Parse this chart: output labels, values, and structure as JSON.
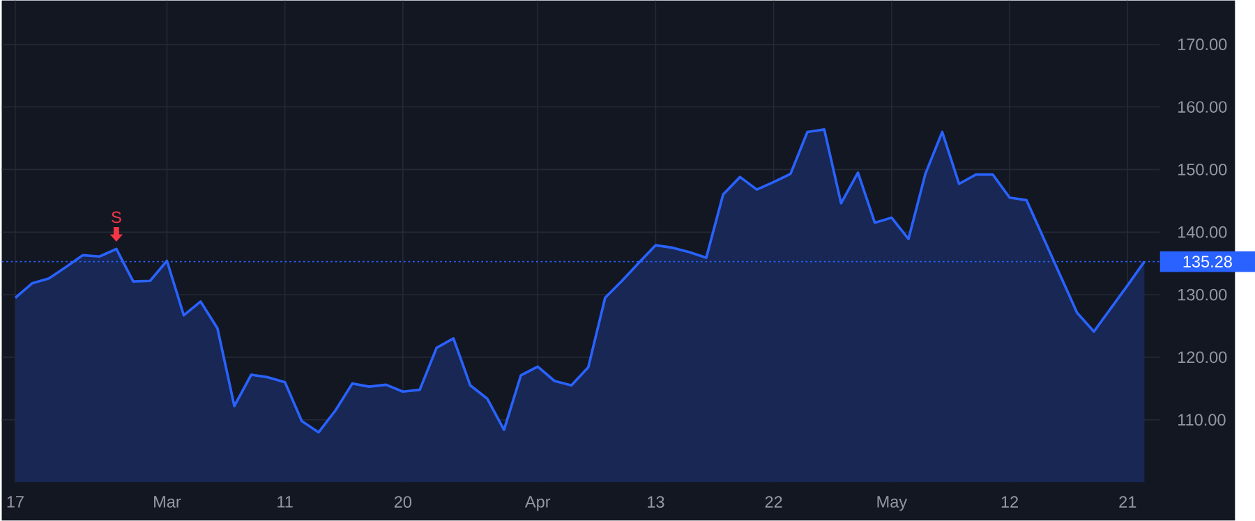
{
  "chart_data": {
    "type": "area",
    "categories": [
      "17",
      null,
      null,
      null,
      null,
      null,
      null,
      null,
      null,
      "Mar",
      null,
      null,
      null,
      null,
      null,
      null,
      "11",
      null,
      null,
      null,
      null,
      null,
      null,
      "20",
      null,
      null,
      null,
      null,
      null,
      null,
      null,
      "Apr",
      null,
      null,
      null,
      null,
      null,
      null,
      "13",
      null,
      null,
      null,
      null,
      null,
      null,
      "22",
      null,
      null,
      null,
      null,
      null,
      null,
      "May",
      null,
      null,
      null,
      null,
      null,
      null,
      "12",
      null,
      null,
      null,
      null,
      null,
      null,
      "21",
      null
    ],
    "series": [
      {
        "color": "#2962ff",
        "values": [
          129.5,
          131.8,
          132.6,
          134.4,
          136.3,
          136.1,
          137.3,
          132.1,
          132.2,
          135.4,
          126.7,
          128.9,
          124.6,
          112.2,
          117.2,
          116.8,
          116.0,
          109.8,
          108.0,
          111.5,
          115.8,
          115.3,
          115.6,
          114.5,
          114.8,
          121.5,
          123.0,
          115.5,
          113.4,
          108.4,
          117.1,
          118.5,
          116.2,
          115.5,
          118.4,
          129.5,
          132.2,
          135.1,
          137.9,
          137.5,
          136.8,
          135.9,
          146.0,
          148.8,
          146.8,
          148.0,
          149.3,
          156.0,
          156.4,
          144.6,
          149.5,
          141.5,
          142.3,
          138.9,
          149.3,
          156.0,
          147.7,
          149.2,
          149.2,
          145.5,
          145.1,
          139.1,
          133.1,
          127.1,
          124.1,
          127.8,
          131.5,
          135.3
        ]
      }
    ],
    "ylim": [
      100,
      177
    ],
    "yticks": [
      {
        "value": 110,
        "label": "110.00"
      },
      {
        "value": 120,
        "label": "120.00"
      },
      {
        "value": 130,
        "label": "130.00"
      },
      {
        "value": 140,
        "label": "140.00"
      },
      {
        "value": 150,
        "label": "150.00"
      },
      {
        "value": 160,
        "label": "160.00"
      },
      {
        "value": 170,
        "label": "170.00"
      }
    ],
    "ref_lines": [
      {
        "axis": "y",
        "value": 135.28,
        "label": "135.28",
        "color": "#2962ff",
        "line_style": "dotted"
      }
    ],
    "annotations": [
      {
        "text": "S",
        "y": 137.3
      }
    ],
    "grid": true,
    "marker": "none",
    "line_style": "solid"
  }
}
